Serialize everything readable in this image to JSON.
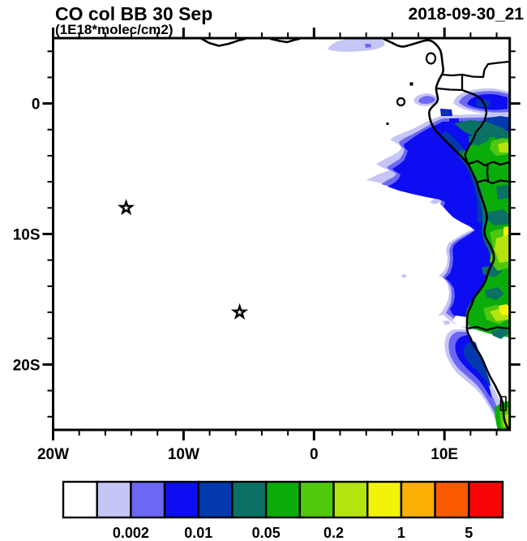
{
  "chart_data": {
    "type": "filled_contour_map",
    "title": "CO col BB 30 Sep",
    "units_label": "(1E18*molec/cm2)",
    "timestamp": "2018-09-30_21",
    "projection": "equidistant cylindrical",
    "lon_range_deg": [
      -20,
      15
    ],
    "lat_range_deg": [
      -25.2,
      5.2
    ],
    "x_axis": {
      "major_ticks": [
        {
          "lon": -20,
          "label": "20W"
        },
        {
          "lon": -10,
          "label": "10W"
        },
        {
          "lon": 0,
          "label": "0"
        },
        {
          "lon": 10,
          "label": "10E"
        }
      ],
      "minor_tick_step_deg": 2
    },
    "y_axis": {
      "major_ticks": [
        {
          "lat": 0,
          "label": "0"
        },
        {
          "lat": -10,
          "label": "10S"
        },
        {
          "lat": -20,
          "label": "20S"
        }
      ],
      "minor_tick_step_deg": 2
    },
    "contour_levels": [
      0.001,
      0.002,
      0.005,
      0.01,
      0.02,
      0.05,
      0.1,
      0.2,
      0.5,
      1,
      2,
      5
    ],
    "colorbar": {
      "labels": [
        "0.002",
        "0.01",
        "0.05",
        "0.2",
        "1",
        "5"
      ],
      "labeled_level_indices": [
        2,
        4,
        6,
        8,
        10,
        12
      ],
      "colors": [
        "#FFFFFF",
        "#C5C5F6",
        "#6C68F4",
        "#0D0DF2",
        "#0339AE",
        "#0A7164",
        "#0AAC0A",
        "#4FC70D",
        "#B4E30D",
        "#F3F30A",
        "#FCB005",
        "#FC5A02",
        "#F90505"
      ]
    },
    "markers": [
      {
        "symbol": "star",
        "lon_deg": -14.4,
        "lat_deg": -8.0
      },
      {
        "symbol": "star",
        "lon_deg": -5.7,
        "lat_deg": -16.0
      }
    ],
    "field_description": "CO column from biomass burning: plume over the SE Atlantic hugging the Gabon-Congo-Angola coast, maxima (yellow) near the Angola coast around 9-16S, light patches near the equator and Gulf of Guinea"
  }
}
